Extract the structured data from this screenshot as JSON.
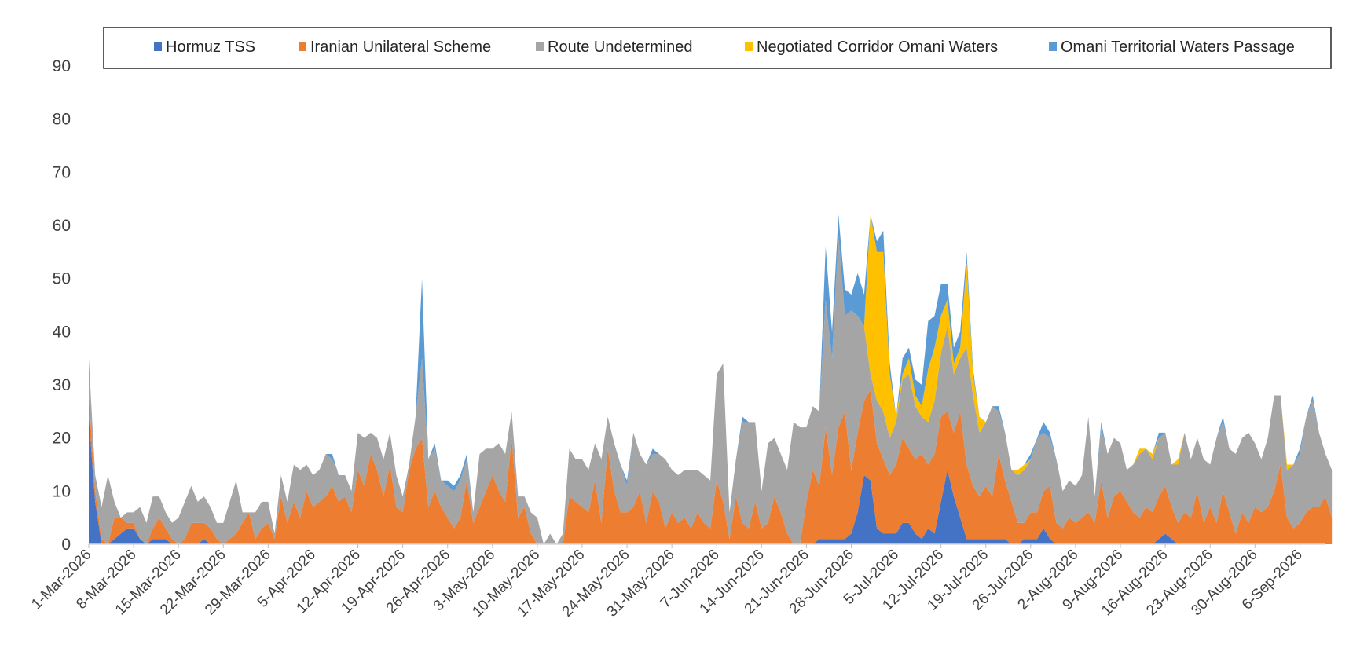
{
  "chart_data": {
    "type": "area",
    "stacked": true,
    "title": "",
    "xlabel": "",
    "ylabel": "",
    "ylim": [
      0,
      90
    ],
    "yticks": [
      0,
      10,
      20,
      30,
      40,
      50,
      60,
      70,
      80,
      90
    ],
    "grid": false,
    "legend_position": "top",
    "x_start": "1-Mar-2026",
    "x_end": "10-Sep-2026",
    "x_tick_labels": [
      "1-Mar-2026",
      "8-Mar-2026",
      "15-Mar-2026",
      "22-Mar-2026",
      "29-Mar-2026",
      "5-Apr-2026",
      "12-Apr-2026",
      "19-Apr-2026",
      "26-Apr-2026",
      "3-May-2026",
      "10-May-2026",
      "17-May-2026",
      "24-May-2026",
      "31-May-2026",
      "7-Jun-2026",
      "14-Jun-2026",
      "21-Jun-2026",
      "28-Jun-2026",
      "5-Jul-2026",
      "12-Jul-2026",
      "19-Jul-2026",
      "26-Jul-2026",
      "2-Aug-2026",
      "9-Aug-2026",
      "16-Aug-2026",
      "23-Aug-2026",
      "30-Aug-2026",
      "6-Sep-2026"
    ],
    "series": [
      {
        "name": "Hormuz TSS",
        "color": "#4472C4",
        "values": [
          24,
          8,
          0,
          0,
          1,
          2,
          3,
          3,
          1,
          0,
          1,
          1,
          1,
          0,
          0,
          0,
          0,
          0,
          1,
          0,
          0,
          0,
          0,
          0,
          0,
          0,
          0,
          0,
          0,
          0,
          0,
          0,
          0,
          0,
          0,
          0,
          0,
          0,
          0,
          0,
          0,
          0,
          0,
          0,
          0,
          0,
          0,
          0,
          0,
          0,
          0,
          0,
          0,
          0,
          0,
          0,
          0,
          0,
          0,
          0,
          0,
          0,
          0,
          0,
          0,
          0,
          0,
          0,
          0,
          0,
          0,
          0,
          0,
          0,
          0,
          0,
          0,
          0,
          0,
          0,
          0,
          0,
          0,
          0,
          0,
          0,
          0,
          0,
          0,
          0,
          0,
          0,
          0,
          0,
          0,
          0,
          0,
          0,
          0,
          0,
          0,
          0,
          0,
          0,
          0,
          0,
          0,
          0,
          0,
          0,
          0,
          0,
          0,
          0,
          1,
          1,
          1,
          1,
          1,
          2,
          6,
          13,
          12,
          3,
          2,
          2,
          2,
          4,
          4,
          2,
          1,
          3,
          2,
          8,
          14,
          9,
          5,
          1,
          1,
          1,
          1,
          1,
          1,
          1,
          0,
          0,
          1,
          1,
          1,
          3,
          1,
          0,
          0,
          0,
          0,
          0,
          0,
          0,
          0,
          0,
          0,
          0,
          0,
          0,
          0,
          0,
          0,
          1,
          2,
          1,
          0,
          0,
          0,
          0,
          0,
          0,
          0,
          0,
          0,
          0,
          0,
          0,
          0,
          0,
          0,
          0,
          0,
          0,
          0,
          0,
          0,
          0,
          0,
          0,
          0
        ]
      },
      {
        "name": "Iranian Unilateral Scheme",
        "color": "#ED7D31",
        "values": [
          4,
          2,
          1,
          0,
          4,
          3,
          1,
          1,
          0,
          0,
          2,
          4,
          2,
          1,
          0,
          1,
          4,
          4,
          3,
          3,
          1,
          0,
          1,
          2,
          4,
          6,
          1,
          3,
          4,
          1,
          9,
          4,
          8,
          5,
          10,
          7,
          8,
          9,
          11,
          8,
          9,
          6,
          14,
          11,
          17,
          14,
          9,
          15,
          7,
          6,
          14,
          18,
          20,
          7,
          10,
          7,
          5,
          3,
          5,
          12,
          4,
          7,
          10,
          13,
          10,
          8,
          20,
          5,
          7,
          2,
          0,
          0,
          0,
          0,
          0,
          9,
          8,
          7,
          6,
          12,
          4,
          18,
          10,
          6,
          6,
          7,
          10,
          4,
          10,
          8,
          3,
          6,
          4,
          5,
          3,
          6,
          4,
          3,
          12,
          8,
          1,
          9,
          4,
          3,
          8,
          3,
          4,
          9,
          6,
          2,
          0,
          0,
          8,
          14,
          10,
          21,
          12,
          21,
          24,
          12,
          15,
          14,
          17,
          16,
          14,
          11,
          13,
          16,
          14,
          14,
          16,
          12,
          15,
          16,
          11,
          12,
          20,
          14,
          10,
          8,
          10,
          8,
          16,
          11,
          8,
          4,
          3,
          5,
          5,
          7,
          10,
          4,
          3,
          5,
          4,
          5,
          6,
          4,
          12,
          5,
          9,
          10,
          8,
          6,
          5,
          7,
          6,
          8,
          9,
          6,
          4,
          6,
          5,
          10,
          4,
          7,
          4,
          10,
          6,
          2,
          6,
          4,
          7,
          6,
          7,
          10,
          15,
          5,
          3,
          4,
          6,
          7,
          7,
          9,
          5,
          7,
          4,
          3,
          3,
          2,
          12,
          2,
          6,
          8,
          10,
          6
        ]
      },
      {
        "name": "Route Undetermined",
        "color": "#A5A5A5",
        "values": [
          7,
          3,
          6,
          13,
          3,
          0,
          2,
          2,
          6,
          4,
          6,
          4,
          3,
          3,
          5,
          7,
          7,
          4,
          5,
          4,
          3,
          4,
          7,
          10,
          2,
          0,
          5,
          5,
          4,
          1,
          4,
          4,
          7,
          9,
          5,
          6,
          6,
          8,
          5,
          5,
          4,
          4,
          7,
          9,
          4,
          6,
          7,
          6,
          6,
          3,
          1,
          6,
          15,
          9,
          8,
          5,
          6,
          7,
          7,
          4,
          2,
          10,
          8,
          5,
          9,
          9,
          5,
          4,
          2,
          4,
          5,
          0,
          2,
          0,
          2,
          9,
          8,
          9,
          8,
          7,
          12,
          6,
          9,
          9,
          5,
          14,
          7,
          11,
          7,
          9,
          13,
          8,
          9,
          9,
          11,
          8,
          9,
          9,
          20,
          26,
          5,
          7,
          19,
          20,
          15,
          7,
          15,
          11,
          11,
          12,
          23,
          22,
          14,
          12,
          14,
          24,
          22,
          36,
          18,
          30,
          22,
          14,
          3,
          8,
          9,
          7,
          8,
          11,
          14,
          10,
          7,
          8,
          10,
          12,
          16,
          11,
          10,
          22,
          17,
          12,
          12,
          17,
          8,
          9,
          6,
          9,
          10,
          10,
          14,
          11,
          9,
          12,
          7,
          7,
          7,
          8,
          18,
          5,
          10,
          12,
          11,
          9,
          6,
          9,
          12,
          11,
          10,
          11,
          10,
          8,
          11,
          15,
          11,
          10,
          12,
          8,
          16,
          13,
          12,
          15,
          14,
          17,
          12,
          10,
          13,
          18,
          13,
          9,
          12,
          13,
          18,
          20,
          14,
          8,
          9,
          10,
          14,
          12,
          11,
          15,
          12,
          11,
          14,
          13,
          6
        ]
      },
      {
        "name": "Negotiated Corridor Omani Waters",
        "color": "#FFC000",
        "values": [
          0,
          0,
          0,
          0,
          0,
          0,
          0,
          0,
          0,
          0,
          0,
          0,
          0,
          0,
          0,
          0,
          0,
          0,
          0,
          0,
          0,
          0,
          0,
          0,
          0,
          0,
          0,
          0,
          0,
          0,
          0,
          0,
          0,
          0,
          0,
          0,
          0,
          0,
          0,
          0,
          0,
          0,
          0,
          0,
          0,
          0,
          0,
          0,
          0,
          0,
          0,
          0,
          0,
          0,
          0,
          0,
          0,
          0,
          0,
          0,
          0,
          0,
          0,
          0,
          0,
          0,
          0,
          0,
          0,
          0,
          0,
          0,
          0,
          0,
          0,
          0,
          0,
          0,
          0,
          0,
          0,
          0,
          0,
          0,
          0,
          0,
          0,
          0,
          0,
          0,
          0,
          0,
          0,
          0,
          0,
          0,
          0,
          0,
          0,
          0,
          0,
          0,
          0,
          0,
          0,
          0,
          0,
          0,
          0,
          0,
          0,
          0,
          0,
          0,
          0,
          0,
          0,
          0,
          0,
          0,
          0,
          0,
          30,
          28,
          30,
          12,
          1,
          1,
          3,
          2,
          2,
          10,
          10,
          7,
          5,
          2,
          2,
          16,
          4,
          3,
          0,
          0,
          0,
          0,
          0,
          1,
          1,
          0,
          0,
          0,
          0,
          0,
          0,
          0,
          0,
          0,
          0,
          0,
          0,
          0,
          0,
          0,
          0,
          0,
          1,
          0,
          1,
          0,
          0,
          0,
          1,
          0,
          0,
          0,
          0,
          0,
          0,
          0,
          0,
          0,
          0,
          0,
          0,
          0,
          0,
          0,
          0,
          1,
          0,
          0,
          0,
          0,
          0,
          0,
          0,
          0,
          0,
          0,
          0,
          1,
          1,
          0,
          1,
          0,
          0,
          0,
          1,
          0
        ]
      },
      {
        "name": "Omani Territorial Waters Passage",
        "color": "#5B9BD5",
        "values": [
          0,
          0,
          0,
          0,
          0,
          0,
          0,
          0,
          0,
          0,
          0,
          0,
          0,
          0,
          0,
          0,
          0,
          0,
          0,
          0,
          0,
          0,
          0,
          0,
          0,
          0,
          0,
          0,
          0,
          0,
          0,
          0,
          0,
          0,
          0,
          0,
          0,
          0,
          1,
          0,
          0,
          0,
          0,
          0,
          0,
          0,
          0,
          0,
          0,
          0,
          0,
          0,
          15,
          0,
          1,
          0,
          1,
          1,
          1,
          1,
          0,
          0,
          0,
          0,
          0,
          0,
          0,
          0,
          0,
          0,
          0,
          0,
          0,
          0,
          0,
          0,
          0,
          0,
          0,
          0,
          0,
          0,
          0,
          0,
          1,
          0,
          0,
          0,
          1,
          0,
          0,
          0,
          0,
          0,
          0,
          0,
          0,
          0,
          0,
          0,
          0,
          0,
          1,
          0,
          0,
          0,
          0,
          0,
          0,
          0,
          0,
          0,
          0,
          0,
          0,
          10,
          5,
          4,
          5,
          3,
          8,
          6,
          0,
          2,
          4,
          2,
          0,
          3,
          2,
          3,
          4,
          9,
          6,
          6,
          3,
          3,
          3,
          2,
          1,
          0,
          0,
          0,
          1,
          0,
          0,
          0,
          0,
          1,
          0,
          2,
          1,
          0,
          0,
          0,
          0,
          0,
          0,
          0,
          1,
          0,
          0,
          0,
          0,
          0,
          0,
          0,
          0,
          1,
          0,
          0,
          0,
          0,
          0,
          0,
          0,
          0,
          0,
          1,
          0,
          0,
          0,
          0,
          0,
          0,
          0,
          0,
          0,
          0,
          0,
          1,
          0,
          1,
          0,
          0,
          0,
          0,
          0,
          0,
          0,
          0,
          0,
          0,
          0,
          0,
          0
        ]
      }
    ]
  }
}
